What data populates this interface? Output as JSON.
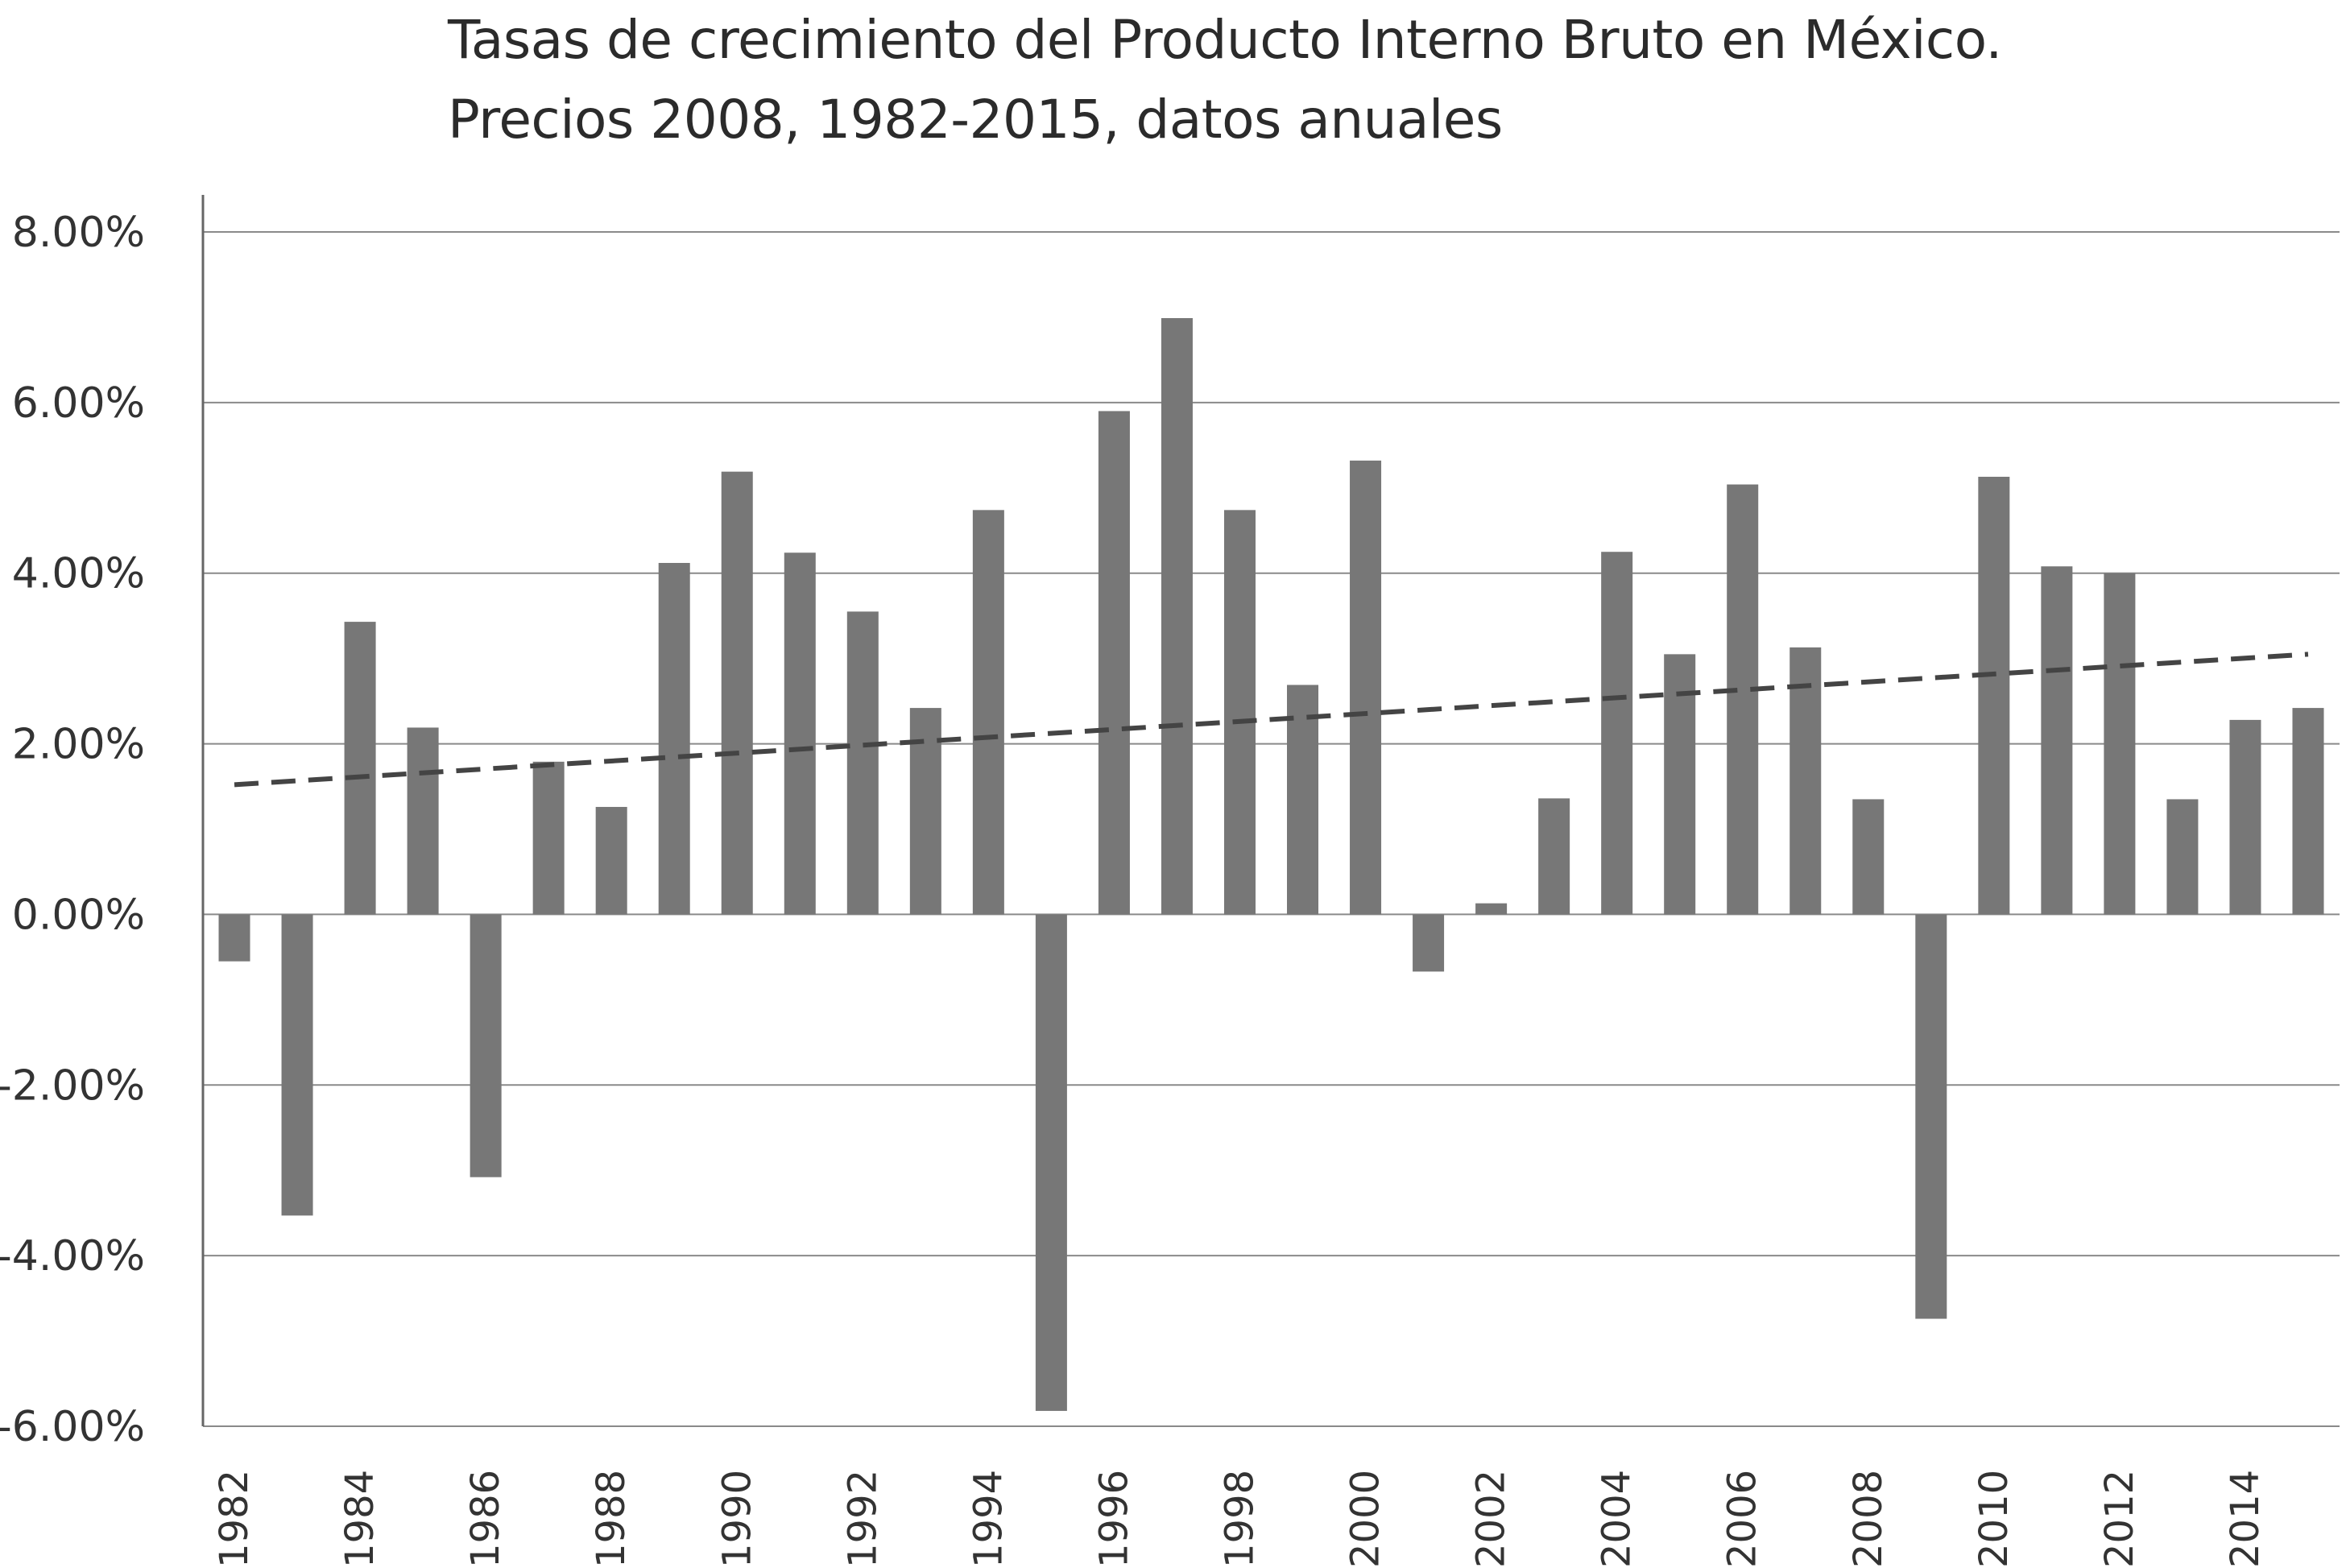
{
  "chart_data": {
    "type": "bar",
    "title": "Tasas de crecimiento del Producto Interno Bruto en México.",
    "subtitle": "Precios 2008, 1982-2015, datos anuales",
    "xlabel": "",
    "ylabel": "",
    "ylim": [
      -0.06,
      0.08
    ],
    "yticks": [
      0.08,
      0.06,
      0.04,
      0.02,
      0.0,
      -0.02,
      -0.04,
      -0.06
    ],
    "ytick_labels": [
      "8.00%",
      "6.00%",
      "4.00%",
      "2.00%",
      "0.00%",
      "-2.00%",
      "-4.00%",
      "-6.00%"
    ],
    "xtick_labels": [
      "1982",
      "1984",
      "1986",
      "1988",
      "1990",
      "1992",
      "1994",
      "1996",
      "1998",
      "2000",
      "2002",
      "2004",
      "2006",
      "2008",
      "2010",
      "2012",
      "2014"
    ],
    "categories": [
      "1982",
      "1983",
      "1984",
      "1985",
      "1986",
      "1987",
      "1988",
      "1989",
      "1990",
      "1991",
      "1992",
      "1993",
      "1994",
      "1995",
      "1996",
      "1997",
      "1998",
      "1999",
      "2000",
      "2001",
      "2002",
      "2003",
      "2004",
      "2005",
      "2006",
      "2007",
      "2008",
      "2009",
      "2010",
      "2011",
      "2012",
      "2013",
      "2014",
      "2015"
    ],
    "series": [
      {
        "values": [
          -0.0055,
          -0.0353,
          0.0343,
          0.0219,
          -0.0308,
          0.0179,
          0.0126,
          0.0412,
          0.0519,
          0.0424,
          0.0355,
          0.0242,
          0.0474,
          -0.0582,
          0.059,
          0.0699,
          0.0474,
          0.0269,
          0.0532,
          -0.0067,
          0.0013,
          0.0136,
          0.0425,
          0.0305,
          0.0504,
          0.0313,
          0.0135,
          -0.0474,
          0.0513,
          0.0408,
          0.04,
          0.0135,
          0.0228,
          0.0242
        ],
        "color": "#777777"
      }
    ],
    "trendline": {
      "style": "dashed",
      "color": "#444444",
      "start": 0.0152,
      "end": 0.0305
    },
    "grid": true,
    "legend": "none"
  }
}
